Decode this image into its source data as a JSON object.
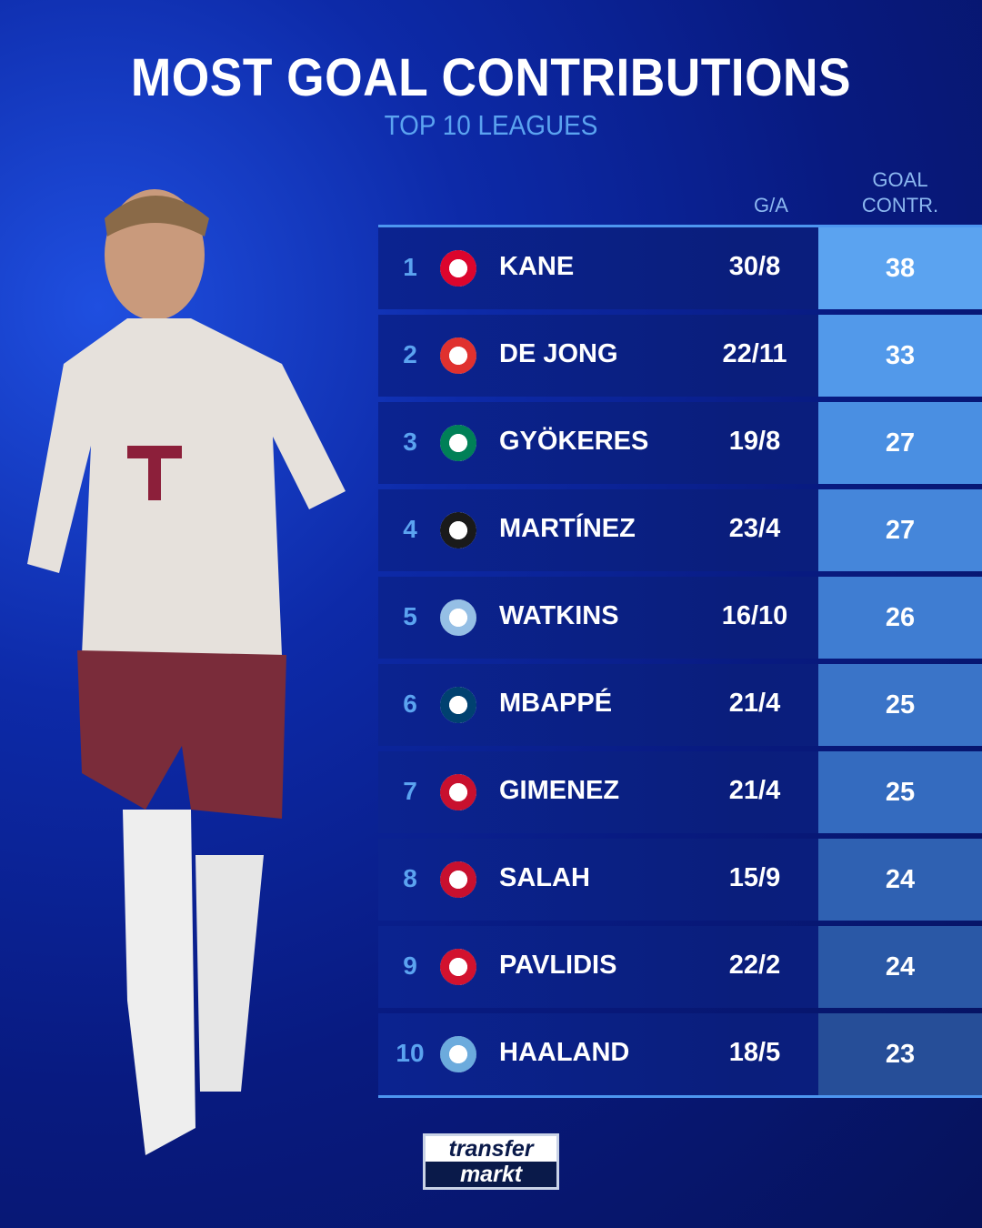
{
  "title": "MOST GOAL CONTRIBUTIONS",
  "subtitle": "TOP 10 LEAGUES",
  "columns": {
    "ga": "G/A",
    "gc_line1": "GOAL",
    "gc_line2": "CONTR."
  },
  "rows": [
    {
      "rank": "1",
      "name": "KANE",
      "ga": "30/8",
      "gc": "38",
      "crest": "bayern-munich-crest",
      "color": "#dc052d"
    },
    {
      "rank": "2",
      "name": "DE JONG",
      "ga": "22/11",
      "gc": "33",
      "crest": "psv-crest",
      "color": "#e0312f"
    },
    {
      "rank": "3",
      "name": "GYÖKERES",
      "ga": "19/8",
      "gc": "27",
      "crest": "sporting-cp-crest",
      "color": "#008057"
    },
    {
      "rank": "4",
      "name": "MARTÍNEZ",
      "ga": "23/4",
      "gc": "27",
      "crest": "inter-crest",
      "color": "#1a1a1a"
    },
    {
      "rank": "5",
      "name": "WATKINS",
      "ga": "16/10",
      "gc": "26",
      "crest": "aston-villa-crest",
      "color": "#95bfe5"
    },
    {
      "rank": "6",
      "name": "MBAPPÉ",
      "ga": "21/4",
      "gc": "25",
      "crest": "psg-crest",
      "color": "#004170"
    },
    {
      "rank": "7",
      "name": "GIMENEZ",
      "ga": "21/4",
      "gc": "25",
      "crest": "feyenoord-crest",
      "color": "#c8102e"
    },
    {
      "rank": "8",
      "name": "SALAH",
      "ga": "15/9",
      "gc": "24",
      "crest": "liverpool-crest",
      "color": "#c8102e"
    },
    {
      "rank": "9",
      "name": "PAVLIDIS",
      "ga": "22/2",
      "gc": "24",
      "crest": "az-alkmaar-crest",
      "color": "#d2122e"
    },
    {
      "rank": "10",
      "name": "HAALAND",
      "ga": "18/5",
      "gc": "23",
      "crest": "manchester-city-crest",
      "color": "#6cabdd"
    }
  ],
  "gc_colors": [
    "#5ba3f0",
    "#5299ea",
    "#4a8fe2",
    "#4586da",
    "#3f7dd2",
    "#3a74c8",
    "#346bbf",
    "#2f61b2",
    "#2a58a6",
    "#264e98"
  ],
  "logo": {
    "line1": "transfer",
    "line2": "markt"
  }
}
